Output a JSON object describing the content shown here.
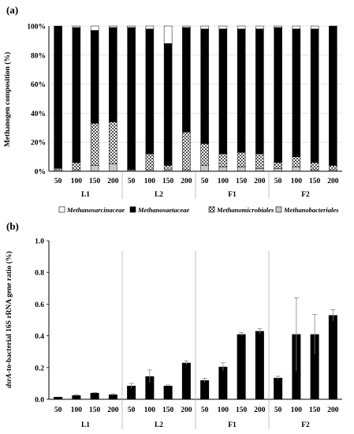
{
  "chart_data": [
    {
      "panel_label": "(a)",
      "type": "bar",
      "stacked": true,
      "percent": true,
      "ylabel": "Methanogen composition (%)",
      "ylim": [
        0,
        100
      ],
      "yticks": [
        "0%",
        "20%",
        "40%",
        "60%",
        "80%",
        "100%"
      ],
      "groups": [
        "L1",
        "L2",
        "F1",
        "F2"
      ],
      "categories": [
        "50",
        "100",
        "150",
        "200"
      ],
      "legend_position": "bottom",
      "series": [
        {
          "name": "Methanobacteriales",
          "fill": "lightgray",
          "values": [
            [
              1,
              1,
              4,
              5
            ],
            [
              0,
              1,
              1,
              1
            ],
            [
              4,
              3,
              3,
              2
            ],
            [
              2,
              3,
              1,
              1
            ]
          ]
        },
        {
          "name": "Methanomicrobiales",
          "fill": "checkered",
          "values": [
            [
              1,
              5,
              29,
              29
            ],
            [
              1,
              11,
              3,
              26
            ],
            [
              15,
              9,
              10,
              10
            ],
            [
              4,
              7,
              5,
              3
            ]
          ]
        },
        {
          "name": "Methanosaetaceae",
          "fill": "black",
          "values": [
            [
              98,
              93,
              64,
              65
            ],
            [
              98,
              86,
              84,
              72
            ],
            [
              79,
              86,
              85,
              86
            ],
            [
              93,
              88,
              92,
              96
            ]
          ]
        },
        {
          "name": "Methanosarcinaceae",
          "fill": "white",
          "values": [
            [
              0,
              1,
              3,
              1
            ],
            [
              1,
              2,
              12,
              1
            ],
            [
              2,
              2,
              2,
              2
            ],
            [
              1,
              2,
              2,
              0
            ]
          ]
        }
      ]
    },
    {
      "panel_label": "(b)",
      "type": "bar",
      "ylabel_italic": "dsrA",
      "ylabel": "-to-bacterial 16S rRNA gene ratio (%)",
      "ylim": [
        0,
        1.0
      ],
      "yticks": [
        "0.0",
        "0.2",
        "0.4",
        "0.6",
        "0.8",
        "1.0"
      ],
      "groups": [
        "L1",
        "L2",
        "F1",
        "F2"
      ],
      "categories": [
        "50",
        "100",
        "150",
        "200"
      ],
      "values": [
        [
          0.015,
          0.025,
          0.04,
          0.03
        ],
        [
          0.085,
          0.145,
          0.085,
          0.23
        ],
        [
          0.12,
          0.205,
          0.41,
          0.43
        ],
        [
          0.135,
          0.41,
          0.41,
          0.53
        ]
      ],
      "errors": [
        [
          0.0,
          0.004,
          0.003,
          0.005
        ],
        [
          0.015,
          0.04,
          0.005,
          0.012
        ],
        [
          0.012,
          0.025,
          0.01,
          0.015
        ],
        [
          0.01,
          0.23,
          0.125,
          0.035
        ]
      ]
    }
  ]
}
